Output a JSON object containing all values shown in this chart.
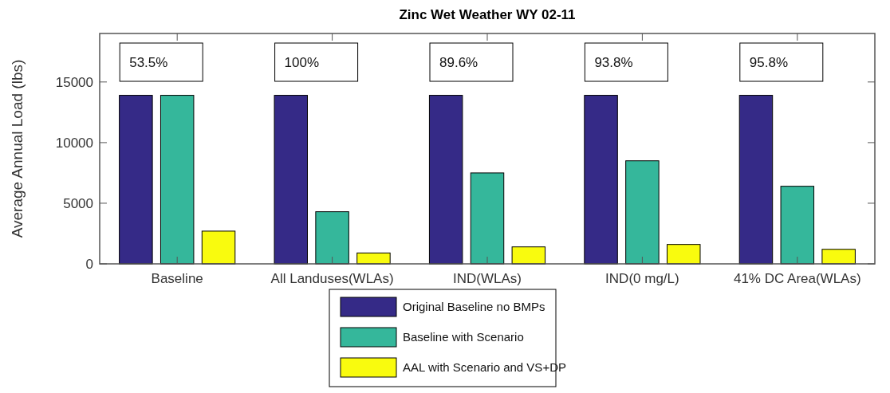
{
  "chart_data": {
    "type": "bar",
    "title": "Zinc Wet Weather WY 02-11",
    "ylabel": "Average Annual Load (lbs)",
    "categories": [
      "Baseline",
      "All Landuses(WLAs)",
      "IND(WLAs)",
      "IND(0 mg/L)",
      "41% DC Area(WLAs)"
    ],
    "series": [
      {
        "name": "Original Baseline no BMPs",
        "color": "#352a87",
        "values": [
          13900,
          13900,
          13900,
          13900,
          13900
        ]
      },
      {
        "name": "Baseline with Scenario",
        "color": "#35b79b",
        "values": [
          13900,
          4300,
          7500,
          8500,
          6400
        ]
      },
      {
        "name": "AAL with Scenario and VS+DP",
        "color": "#f9fb0e",
        "values": [
          2700,
          900,
          1400,
          1600,
          1200
        ]
      }
    ],
    "ylim": [
      0,
      19000
    ],
    "yticks": [
      0,
      5000,
      10000,
      15000
    ],
    "grid": false,
    "legend": "bottom",
    "annotations": [
      "53.5%",
      "100%",
      "89.6%",
      "93.8%",
      "95.8%"
    ]
  }
}
